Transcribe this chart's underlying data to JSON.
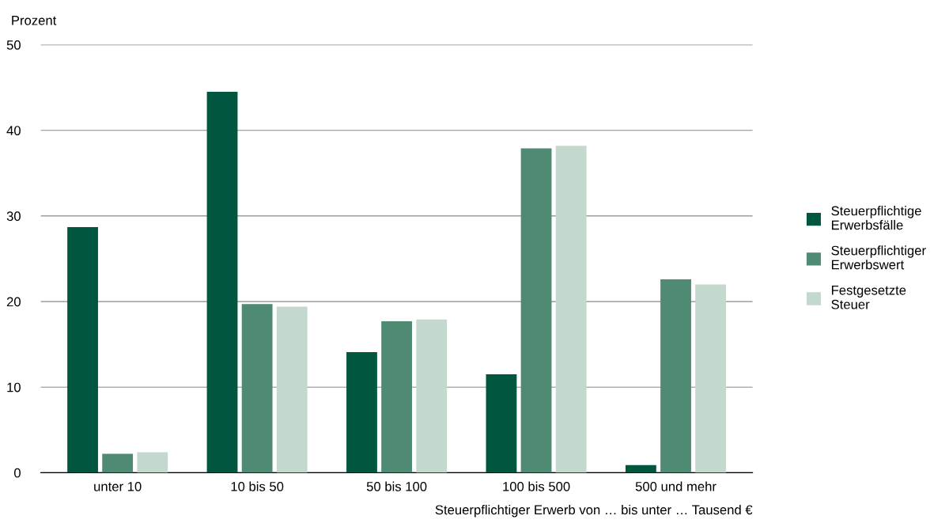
{
  "chart_data": {
    "type": "bar",
    "ylabel": "Prozent",
    "xlabel": "Steuerpflichtiger Erwerb von … bis unter … Tausend €",
    "categories": [
      "unter 10",
      "10 bis 50",
      "50 bis 100",
      "100 bis 500",
      "500 und mehr"
    ],
    "series": [
      {
        "name": "Steuerpflichtige\nErwerbsfälle",
        "color": "#00563f",
        "values": [
          28.7,
          44.5,
          14.1,
          11.5,
          0.9
        ]
      },
      {
        "name": "Steuerpflichtiger\nErwerbswert",
        "color": "#4e8b72",
        "values": [
          2.2,
          19.7,
          17.7,
          37.9,
          22.6
        ]
      },
      {
        "name": "Festgesetzte\nSteuer",
        "color": "#c3d9cd",
        "values": [
          2.4,
          19.4,
          17.9,
          38.2,
          22.0
        ]
      }
    ],
    "ylim": [
      0,
      50
    ],
    "yticks": [
      0,
      10,
      20,
      30,
      40,
      50
    ],
    "grid": "y",
    "legend": "right"
  }
}
